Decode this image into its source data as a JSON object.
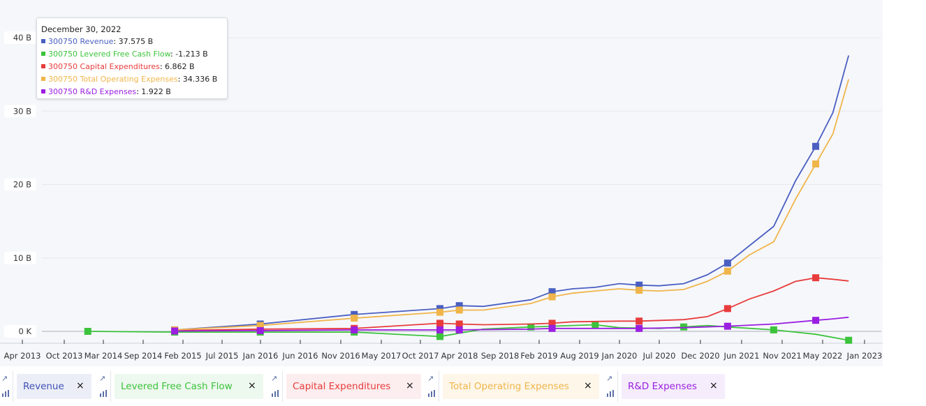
{
  "chart_data": {
    "type": "line",
    "title": "",
    "xlabel": "",
    "ylabel": "",
    "x_ticks": [
      "Apr 2013",
      "Oct 2013",
      "Mar 2014",
      "Sep 2014",
      "Feb 2015",
      "Jul 2015",
      "Jan 2016",
      "Jun 2016",
      "Nov 2016",
      "May 2017",
      "Oct 2017",
      "Apr 2018",
      "Sep 2018",
      "Feb 2019",
      "Aug 2019",
      "Jan 2020",
      "Jul 2020",
      "Dec 2020",
      "Jun 2021",
      "Nov 2021",
      "May 2022",
      "Jan 2023"
    ],
    "y_ticks": [
      "0 K",
      "10 B",
      "20 B",
      "30 B",
      "40 B"
    ],
    "ylim": [
      0,
      40
    ],
    "y_unit": "B",
    "grid": true,
    "series": [
      {
        "name": "300750 Revenue",
        "color": "#4a5fc1",
        "points": [
          [
            "2014-12-31",
            0.2
          ],
          [
            "2015-12-31",
            1.0
          ],
          [
            "2016-12-31",
            2.3
          ],
          [
            "2017-12-31",
            3.1
          ],
          [
            "2018-03-31",
            3.5
          ],
          [
            "2018-06-30",
            3.4
          ],
          [
            "2018-12-31",
            4.3
          ],
          [
            "2019-03-31",
            5.4
          ],
          [
            "2019-06-30",
            5.8
          ],
          [
            "2019-09-30",
            6.0
          ],
          [
            "2019-12-31",
            6.5
          ],
          [
            "2020-03-31",
            6.3
          ],
          [
            "2020-06-30",
            6.2
          ],
          [
            "2020-09-30",
            6.5
          ],
          [
            "2020-12-31",
            7.7
          ],
          [
            "2021-03-31",
            9.3
          ],
          [
            "2021-09-30",
            14.3
          ],
          [
            "2021-12-31",
            20.5
          ],
          [
            "2022-03-31",
            25.2
          ],
          [
            "2022-06-30",
            29.8
          ],
          [
            "2022-09-30",
            37.575
          ]
        ],
        "markers": [
          "2014-12-31",
          "2015-12-31",
          "2016-12-31",
          "2017-12-31",
          "2018-03-31",
          "2019-03-31",
          "2020-03-31",
          "2021-03-31",
          "2022-03-31"
        ]
      },
      {
        "name": "300750 Levered Free Cash Flow",
        "color": "#3cc33c",
        "points": [
          [
            "2013-12-31",
            0.0
          ],
          [
            "2014-12-31",
            -0.1
          ],
          [
            "2015-12-31",
            -0.1
          ],
          [
            "2016-12-31",
            -0.1
          ],
          [
            "2017-12-31",
            -0.7
          ],
          [
            "2018-06-30",
            0.3
          ],
          [
            "2018-12-31",
            0.6
          ],
          [
            "2019-03-31",
            0.7
          ],
          [
            "2019-09-30",
            0.9
          ],
          [
            "2019-12-31",
            0.5
          ],
          [
            "2020-06-30",
            0.4
          ],
          [
            "2020-12-31",
            0.8
          ],
          [
            "2021-03-31",
            0.6
          ],
          [
            "2021-09-30",
            0.2
          ],
          [
            "2021-12-31",
            -0.1
          ],
          [
            "2022-03-31",
            -0.4
          ],
          [
            "2022-09-30",
            -1.213
          ]
        ],
        "markers": [
          "2013-12-31",
          "2014-12-31",
          "2015-12-31",
          "2016-12-31",
          "2017-12-31",
          "2018-12-31",
          "2019-09-30",
          "2020-09-30",
          "2021-09-30",
          "2022-09-30"
        ]
      },
      {
        "name": "300750 Capital Expenditures",
        "color": "#e83c3c",
        "points": [
          [
            "2014-12-31",
            0.1
          ],
          [
            "2015-12-31",
            0.3
          ],
          [
            "2016-12-31",
            0.4
          ],
          [
            "2017-12-31",
            1.1
          ],
          [
            "2018-03-31",
            1.0
          ],
          [
            "2018-06-30",
            0.9
          ],
          [
            "2018-12-31",
            1.0
          ],
          [
            "2019-03-31",
            1.1
          ],
          [
            "2019-06-30",
            1.3
          ],
          [
            "2019-12-31",
            1.4
          ],
          [
            "2020-03-31",
            1.4
          ],
          [
            "2020-09-30",
            1.6
          ],
          [
            "2020-12-31",
            2.0
          ],
          [
            "2021-03-31",
            3.1
          ],
          [
            "2021-06-30",
            4.4
          ],
          [
            "2021-09-30",
            5.5
          ],
          [
            "2021-12-31",
            6.8
          ],
          [
            "2022-03-31",
            7.3
          ],
          [
            "2022-06-30",
            7.1
          ],
          [
            "2022-09-30",
            6.862
          ]
        ],
        "markers": [
          "2014-12-31",
          "2015-12-31",
          "2016-12-31",
          "2017-12-31",
          "2018-03-31",
          "2019-03-31",
          "2020-03-31",
          "2021-03-31",
          "2022-03-31"
        ]
      },
      {
        "name": "300750 Total Operating Expenses",
        "color": "#f0b54a",
        "points": [
          [
            "2014-12-31",
            0.2
          ],
          [
            "2015-12-31",
            0.8
          ],
          [
            "2016-12-31",
            1.8
          ],
          [
            "2017-12-31",
            2.6
          ],
          [
            "2018-03-31",
            2.9
          ],
          [
            "2018-06-30",
            2.9
          ],
          [
            "2018-12-31",
            3.8
          ],
          [
            "2019-03-31",
            4.7
          ],
          [
            "2019-06-30",
            5.2
          ],
          [
            "2019-09-30",
            5.5
          ],
          [
            "2019-12-31",
            5.8
          ],
          [
            "2020-03-31",
            5.6
          ],
          [
            "2020-06-30",
            5.5
          ],
          [
            "2020-09-30",
            5.7
          ],
          [
            "2020-12-31",
            6.8
          ],
          [
            "2021-03-31",
            8.2
          ],
          [
            "2021-06-30",
            10.4
          ],
          [
            "2021-09-30",
            12.2
          ],
          [
            "2021-12-31",
            18.0
          ],
          [
            "2022-03-31",
            22.8
          ],
          [
            "2022-06-30",
            26.9
          ],
          [
            "2022-09-30",
            34.336
          ]
        ],
        "markers": [
          "2014-12-31",
          "2015-12-31",
          "2016-12-31",
          "2017-12-31",
          "2018-03-31",
          "2019-03-31",
          "2020-03-31",
          "2021-03-31",
          "2022-03-31"
        ]
      },
      {
        "name": "300750 R&D Expenses",
        "color": "#9a1fe0",
        "points": [
          [
            "2014-12-31",
            0.05
          ],
          [
            "2015-12-31",
            0.1
          ],
          [
            "2016-12-31",
            0.2
          ],
          [
            "2017-12-31",
            0.2
          ],
          [
            "2018-03-31",
            0.2
          ],
          [
            "2018-12-31",
            0.3
          ],
          [
            "2019-03-31",
            0.4
          ],
          [
            "2019-12-31",
            0.4
          ],
          [
            "2020-03-31",
            0.4
          ],
          [
            "2020-09-30",
            0.5
          ],
          [
            "2021-03-31",
            0.7
          ],
          [
            "2021-09-30",
            1.0
          ],
          [
            "2022-03-31",
            1.5
          ],
          [
            "2022-06-30",
            1.7
          ],
          [
            "2022-09-30",
            1.922
          ]
        ],
        "markers": [
          "2014-12-31",
          "2015-12-31",
          "2016-12-31",
          "2017-12-31",
          "2018-03-31",
          "2019-03-31",
          "2020-03-31",
          "2021-03-31",
          "2022-03-31"
        ]
      }
    ]
  },
  "tooltip": {
    "date": "December 30, 2022",
    "rows": [
      {
        "label": "300750 Revenue",
        "value": "37.575 B",
        "color": "#4a5fc1"
      },
      {
        "label": "300750 Levered Free Cash Flow",
        "value": "-1.213 B",
        "color": "#3cc33c"
      },
      {
        "label": "300750 Capital Expenditures",
        "value": "6.862 B",
        "color": "#e83c3c"
      },
      {
        "label": "300750 Total Operating Expenses",
        "value": "34.336 B",
        "color": "#f0b54a"
      },
      {
        "label": "300750 R&D Expenses",
        "value": "1.922 B",
        "color": "#9a1fe0"
      }
    ]
  },
  "legend": [
    {
      "label": "Revenue",
      "color": "#3f51b5",
      "bg": "#eceef7",
      "close": "×"
    },
    {
      "label": "Levered Free Cash Flow",
      "color": "#3cc33c",
      "bg": "#edf8ee",
      "close": "×"
    },
    {
      "label": "Capital Expenditures",
      "color": "#e83c3c",
      "bg": "#fcedee",
      "close": "×"
    },
    {
      "label": "Total Operating Expenses",
      "color": "#f0b54a",
      "bg": "#fdf6e9",
      "close": "×"
    },
    {
      "label": "R&D Expenses",
      "color": "#9a1fe0",
      "bg": "#f5ecfc",
      "close": "×"
    }
  ],
  "icons": {
    "trend": "trend-arrow-icon",
    "bars": "bar-chart-icon"
  }
}
